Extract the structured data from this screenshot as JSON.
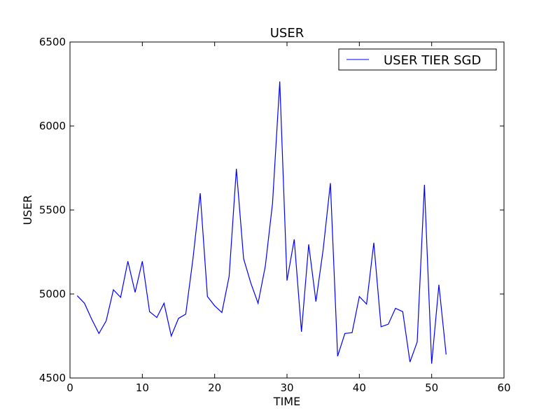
{
  "chart_data": {
    "type": "line",
    "title": "USER",
    "xlabel": "TIME",
    "ylabel": "USER",
    "xlim": [
      0,
      60
    ],
    "ylim": [
      4500,
      6500
    ],
    "xticks": [
      0,
      10,
      20,
      30,
      40,
      50,
      60
    ],
    "yticks": [
      4500,
      5000,
      5500,
      6000,
      6500
    ],
    "grid": false,
    "legend_position": "top-right",
    "line_color": "#0000ff",
    "series": [
      {
        "name": "USER TIER SGD",
        "x": [
          1,
          2,
          3,
          4,
          5,
          6,
          7,
          8,
          9,
          10,
          11,
          12,
          13,
          14,
          15,
          16,
          17,
          18,
          19,
          20,
          21,
          22,
          23,
          24,
          25,
          26,
          27,
          28,
          29,
          30,
          31,
          32,
          33,
          34,
          35,
          36,
          37,
          38,
          39,
          40,
          41,
          42,
          43,
          44,
          45,
          46,
          47,
          48,
          49,
          50,
          51,
          52
        ],
        "y": [
          4990,
          4945,
          4850,
          4765,
          4840,
          5025,
          4980,
          5195,
          5010,
          5195,
          4895,
          4860,
          4945,
          4750,
          4855,
          4880,
          5210,
          5600,
          4985,
          4930,
          4890,
          5105,
          5745,
          5210,
          5065,
          4945,
          5165,
          5540,
          6265,
          5080,
          5325,
          4775,
          5295,
          4955,
          5265,
          5660,
          4630,
          4765,
          4770,
          4985,
          4940,
          5305,
          4805,
          4820,
          4915,
          4895,
          4595,
          4715,
          5650,
          4585,
          5055,
          4640
        ]
      }
    ]
  }
}
